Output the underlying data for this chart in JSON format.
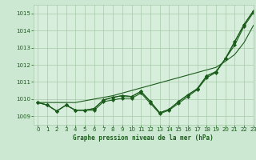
{
  "background_color": "#cde8d2",
  "plot_bg_color": "#d8eedd",
  "grid_color": "#a8caa8",
  "line_color": "#1a5c1a",
  "title": "Graphe pression niveau de la mer (hPa)",
  "xlim": [
    -0.5,
    23
  ],
  "ylim": [
    1008.5,
    1015.5
  ],
  "yticks": [
    1009,
    1010,
    1011,
    1012,
    1013,
    1014,
    1015
  ],
  "xticks": [
    0,
    1,
    2,
    3,
    4,
    5,
    6,
    7,
    8,
    9,
    10,
    11,
    12,
    13,
    14,
    15,
    16,
    17,
    18,
    19,
    20,
    21,
    22,
    23
  ],
  "series": [
    [
      1009.8,
      1009.65,
      1009.3,
      1009.65,
      1009.35,
      1009.35,
      1009.35,
      1009.85,
      1009.95,
      1010.05,
      1010.05,
      1010.35,
      1009.75,
      1009.15,
      1009.35,
      1009.75,
      1010.15,
      1010.55,
      1011.25,
      1011.55,
      1012.35,
      1013.15,
      1014.25,
      1015.05
    ],
    [
      1009.8,
      1009.65,
      1009.3,
      1009.65,
      1009.35,
      1009.35,
      1009.45,
      1009.95,
      1010.1,
      1010.2,
      1010.15,
      1010.45,
      1009.85,
      1009.2,
      1009.4,
      1009.85,
      1010.25,
      1010.6,
      1011.35,
      1011.6,
      1012.35,
      1013.35,
      1014.35,
      1015.15
    ],
    [
      1009.8,
      1009.65,
      1009.3,
      1009.65,
      1009.35,
      1009.35,
      1009.45,
      1009.95,
      1010.1,
      1010.2,
      1010.15,
      1010.45,
      1009.85,
      1009.2,
      1009.4,
      1009.85,
      1010.25,
      1010.6,
      1011.35,
      1011.6,
      1012.35,
      1013.35,
      1014.35,
      1015.15
    ],
    [
      1009.8,
      1009.8,
      1009.8,
      1009.8,
      1009.8,
      1009.9,
      1010.0,
      1010.1,
      1010.2,
      1010.35,
      1010.5,
      1010.65,
      1010.8,
      1010.95,
      1011.1,
      1011.25,
      1011.4,
      1011.55,
      1011.7,
      1011.85,
      1012.2,
      1012.6,
      1013.3,
      1014.3
    ]
  ]
}
